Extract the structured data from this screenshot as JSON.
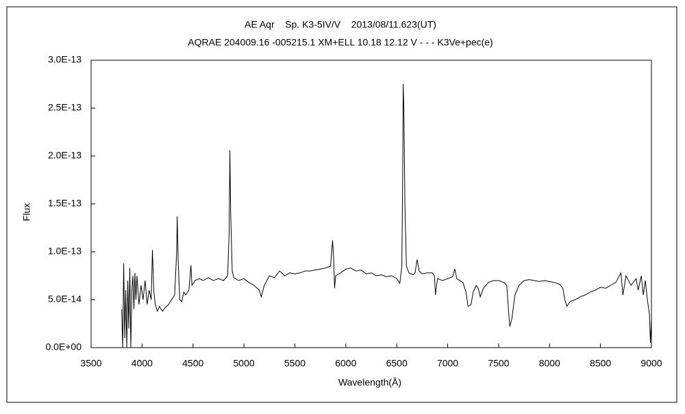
{
  "chart_data": {
    "type": "line",
    "title": "AE Aqr    Sp. K3-5IV/V    2013/08/11.623(UT)",
    "subtitle": "AQRAE 204009.16 -005215.1 XM+ELL 10.18 12.12 V - - - K3Ve+pec(e)",
    "xlabel": "Wavelength(Å)",
    "ylabel": "Flux",
    "xlim": [
      3500,
      9000
    ],
    "xticks": [
      3500,
      4000,
      4500,
      5000,
      5500,
      6000,
      6500,
      7000,
      7500,
      8000,
      8500,
      9000
    ],
    "ylim": [
      0,
      3e-13
    ],
    "yticks": [
      {
        "value": 0,
        "label": "0.0E+00"
      },
      {
        "value": 5e-14,
        "label": "5.0E-14"
      },
      {
        "value": 1e-13,
        "label": "1.0E-13"
      },
      {
        "value": 1.5e-13,
        "label": "1.5E-13"
      },
      {
        "value": 2e-13,
        "label": "2.0E-13"
      },
      {
        "value": 2.5e-13,
        "label": "2.5E-13"
      },
      {
        "value": 3e-13,
        "label": "3.0E-13"
      }
    ],
    "grid": false,
    "series": [
      {
        "color": "#000000",
        "x": [
          3800,
          3810,
          3820,
          3830,
          3840,
          3850,
          3860,
          3870,
          3880,
          3890,
          3900,
          3910,
          3920,
          3930,
          3940,
          3950,
          3970,
          3990,
          4010,
          4030,
          4050,
          4070,
          4090,
          4102,
          4115,
          4130,
          4150,
          4170,
          4200,
          4230,
          4260,
          4290,
          4320,
          4340,
          4345,
          4355,
          4370,
          4390,
          4410,
          4430,
          4460,
          4480,
          4490,
          4520,
          4560,
          4600,
          4650,
          4700,
          4750,
          4800,
          4840,
          4855,
          4862,
          4870,
          4885,
          4900,
          4950,
          5000,
          5050,
          5100,
          5150,
          5170,
          5200,
          5250,
          5300,
          5350,
          5400,
          5450,
          5500,
          5550,
          5600,
          5650,
          5700,
          5750,
          5800,
          5850,
          5870,
          5880,
          5890,
          5900,
          5950,
          6000,
          6050,
          6100,
          6150,
          6200,
          6250,
          6300,
          6350,
          6400,
          6450,
          6500,
          6530,
          6550,
          6560,
          6563,
          6570,
          6580,
          6595,
          6620,
          6660,
          6680,
          6700,
          6720,
          6750,
          6800,
          6850,
          6870,
          6880,
          6900,
          6950,
          7000,
          7050,
          7070,
          7090,
          7150,
          7180,
          7200,
          7230,
          7250,
          7280,
          7300,
          7320,
          7350,
          7400,
          7450,
          7500,
          7550,
          7580,
          7600,
          7610,
          7630,
          7660,
          7700,
          7750,
          7800,
          7850,
          7900,
          7950,
          8000,
          8050,
          8100,
          8130,
          8150,
          8170,
          8200,
          8250,
          8300,
          8350,
          8400,
          8450,
          8500,
          8550,
          8600,
          8650,
          8700,
          8720,
          8750,
          8800,
          8850,
          8870,
          8900,
          8920,
          8940,
          8960,
          8980,
          8990,
          9000
        ],
        "values": [
          4e-14,
          0,
          8.8e-14,
          1e-14,
          6e-14,
          0,
          7e-14,
          2e-14,
          8.3e-14,
          0,
          6e-14,
          7.5e-14,
          4e-14,
          7.8e-14,
          5e-14,
          7.5e-14,
          4.5e-14,
          6.5e-14,
          5e-14,
          7e-14,
          4.5e-14,
          6e-14,
          5e-14,
          1.02e-13,
          6e-14,
          4.5e-14,
          3.8e-14,
          4.3e-14,
          3.8e-14,
          4.2e-14,
          4.5e-14,
          5e-14,
          5.5e-14,
          1e-13,
          1.37e-13,
          9e-14,
          5e-14,
          4.8e-14,
          5.8e-14,
          5.5e-14,
          6e-14,
          8.6e-14,
          6.5e-14,
          7e-14,
          7.2e-14,
          7e-14,
          7.3e-14,
          7e-14,
          7.2e-14,
          7e-14,
          7.5e-14,
          1.2e-13,
          2.06e-13,
          1.4e-13,
          8e-14,
          7.3e-14,
          7e-14,
          7.2e-14,
          6.8e-14,
          6.5e-14,
          6e-14,
          5.3e-14,
          6.5e-14,
          7.5e-14,
          7.3e-14,
          8e-14,
          7.5e-14,
          7.8e-14,
          7.7e-14,
          7.8e-14,
          8e-14,
          8e-14,
          8.1e-14,
          8.2e-14,
          8.3e-14,
          8.5e-14,
          1.12e-13,
          9.5e-14,
          6.2e-14,
          7.5e-14,
          7.8e-14,
          8.2e-14,
          8.3e-14,
          8e-14,
          8.1e-14,
          7.7e-14,
          7.8e-14,
          7.5e-14,
          7.6e-14,
          7.4e-14,
          7.5e-14,
          7.2e-14,
          6.7e-14,
          8.5e-14,
          2e-13,
          2.75e-13,
          2.5e-13,
          1.5e-13,
          8.5e-14,
          7.8e-14,
          7.6e-14,
          7.8e-14,
          9.2e-14,
          8e-14,
          7.7e-14,
          7.8e-14,
          7.8e-14,
          7.5e-14,
          5.5e-14,
          7.2e-14,
          7e-14,
          7.2e-14,
          7.4e-14,
          8.2e-14,
          7.2e-14,
          6.8e-14,
          5.8e-14,
          4.3e-14,
          4.5e-14,
          5.8e-14,
          6.5e-14,
          6.2e-14,
          5.3e-14,
          6.2e-14,
          6.8e-14,
          7e-14,
          7e-14,
          6.8e-14,
          6.5e-14,
          3.5e-14,
          2.2e-14,
          3e-14,
          5.5e-14,
          6.5e-14,
          7e-14,
          7.1e-14,
          7e-14,
          6.9e-14,
          7e-14,
          6.9e-14,
          6.8e-14,
          6.6e-14,
          6.2e-14,
          5e-14,
          4.3e-14,
          4.8e-14,
          5e-14,
          5.3e-14,
          5.5e-14,
          5.8e-14,
          6e-14,
          6.3e-14,
          6.2e-14,
          6.5e-14,
          6.8e-14,
          7.8e-14,
          5.5e-14,
          7.5e-14,
          6.5e-14,
          7.2e-14,
          6e-14,
          7.5e-14,
          5.5e-14,
          7e-14,
          5e-14,
          3.5e-14,
          5e-15,
          3e-14
        ]
      }
    ]
  }
}
